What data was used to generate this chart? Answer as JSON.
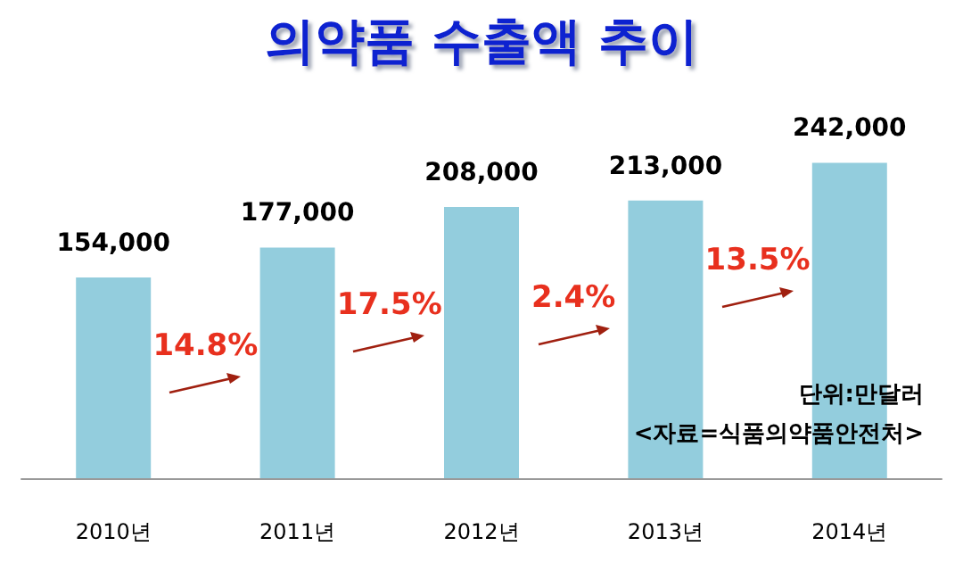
{
  "chart_data": {
    "type": "bar",
    "title": "의약품 수출액 추이",
    "categories": [
      "2010년",
      "2011년",
      "2012년",
      "2013년",
      "2014년"
    ],
    "values": [
      154000,
      177000,
      208000,
      213000,
      242000
    ],
    "color": "#93cddd",
    "value_labels": [
      "154,000",
      "177,000",
      "208,000",
      "213,000",
      "242,000"
    ],
    "annotations": [
      "14.8%",
      "17.5%",
      "2.4%",
      "13.5%",
      "단위:만달러",
      "<자료=식품의약품안전처>"
    ]
  }
}
